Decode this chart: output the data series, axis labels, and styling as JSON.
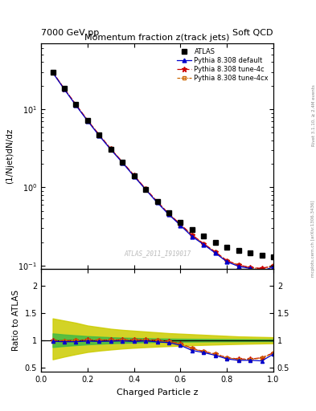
{
  "title_top_left": "7000 GeV pp",
  "title_top_right": "Soft QCD",
  "plot_title": "Momentum fraction z(track jets)",
  "ylabel_main": "(1/Njet)dN/dz",
  "ylabel_ratio": "Ratio to ATLAS",
  "xlabel": "Charged Particle z",
  "right_label_top": "Rivet 3.1.10, ≥ 2.4M events",
  "right_label_bot": "mcplots.cern.ch [arXiv:1306.3436]",
  "watermark": "ATLAS_2011_I919017",
  "xlim": [
    0.0,
    1.0
  ],
  "ylim_main_log": [
    0.09,
    70.0
  ],
  "ylim_ratio": [
    0.42,
    2.3
  ],
  "ratio_yticks": [
    0.5,
    1.0,
    1.5,
    2.0
  ],
  "ratio_ytick_labels": [
    "0.5",
    "1",
    "1.5",
    "2"
  ],
  "z_data": [
    0.05,
    0.1,
    0.15,
    0.2,
    0.25,
    0.3,
    0.35,
    0.4,
    0.45,
    0.5,
    0.55,
    0.6,
    0.65,
    0.7,
    0.75,
    0.8,
    0.85,
    0.9,
    0.95,
    1.0
  ],
  "atlas_y": [
    30.0,
    18.5,
    11.5,
    7.2,
    4.7,
    3.1,
    2.1,
    1.42,
    0.95,
    0.66,
    0.47,
    0.36,
    0.29,
    0.24,
    0.2,
    0.17,
    0.155,
    0.145,
    0.135,
    0.13
  ],
  "pythia_default_y": [
    29.4,
    18.0,
    11.2,
    7.1,
    4.6,
    3.05,
    2.08,
    1.39,
    0.94,
    0.64,
    0.45,
    0.327,
    0.236,
    0.186,
    0.145,
    0.112,
    0.098,
    0.092,
    0.084,
    0.097
  ],
  "pythia_4c_y": [
    29.8,
    18.3,
    11.5,
    7.25,
    4.72,
    3.12,
    2.12,
    1.43,
    0.96,
    0.66,
    0.46,
    0.338,
    0.247,
    0.191,
    0.15,
    0.116,
    0.102,
    0.095,
    0.092,
    0.1
  ],
  "pythia_4cx_y": [
    29.7,
    18.2,
    11.4,
    7.22,
    4.7,
    3.11,
    2.11,
    1.42,
    0.955,
    0.655,
    0.458,
    0.335,
    0.245,
    0.19,
    0.149,
    0.115,
    0.101,
    0.094,
    0.091,
    0.099
  ],
  "ratio_default": [
    0.98,
    0.973,
    0.974,
    0.986,
    0.979,
    0.984,
    0.99,
    0.979,
    0.989,
    0.97,
    0.957,
    0.908,
    0.814,
    0.775,
    0.725,
    0.659,
    0.632,
    0.634,
    0.622,
    0.746
  ],
  "ratio_4c": [
    0.993,
    0.989,
    1.0,
    1.007,
    1.004,
    1.006,
    1.01,
    1.007,
    1.011,
    1.0,
    0.979,
    0.939,
    0.852,
    0.796,
    0.75,
    0.682,
    0.658,
    0.655,
    0.681,
    0.769
  ],
  "ratio_4cx": [
    0.99,
    0.984,
    0.991,
    1.003,
    1.0,
    1.003,
    1.005,
    1.0,
    1.005,
    0.992,
    0.974,
    0.931,
    0.845,
    0.792,
    0.745,
    0.677,
    0.652,
    0.648,
    0.674,
    0.762
  ],
  "green_band_lo": [
    0.875,
    0.895,
    0.91,
    0.925,
    0.935,
    0.945,
    0.952,
    0.958,
    0.963,
    0.967,
    0.97,
    0.973,
    0.975,
    0.977,
    0.979,
    0.98,
    0.981,
    0.982,
    0.983,
    0.984
  ],
  "green_band_hi": [
    1.125,
    1.105,
    1.09,
    1.075,
    1.065,
    1.055,
    1.048,
    1.042,
    1.037,
    1.033,
    1.03,
    1.027,
    1.025,
    1.023,
    1.021,
    1.02,
    1.019,
    1.018,
    1.017,
    1.016
  ],
  "yellow_band_lo": [
    0.65,
    0.7,
    0.745,
    0.785,
    0.81,
    0.83,
    0.848,
    0.862,
    0.873,
    0.883,
    0.892,
    0.9,
    0.908,
    0.915,
    0.921,
    0.927,
    0.932,
    0.937,
    0.941,
    0.945
  ],
  "yellow_band_hi": [
    1.4,
    1.36,
    1.32,
    1.27,
    1.24,
    1.21,
    1.19,
    1.175,
    1.16,
    1.145,
    1.13,
    1.12,
    1.11,
    1.1,
    1.09,
    1.08,
    1.07,
    1.065,
    1.06,
    1.055
  ],
  "color_atlas": "#000000",
  "color_default": "#0000cc",
  "color_4c": "#cc0000",
  "color_4cx": "#cc6600",
  "color_green": "#44bb44",
  "color_yellow": "#cccc00",
  "color_bg": "#ffffff"
}
